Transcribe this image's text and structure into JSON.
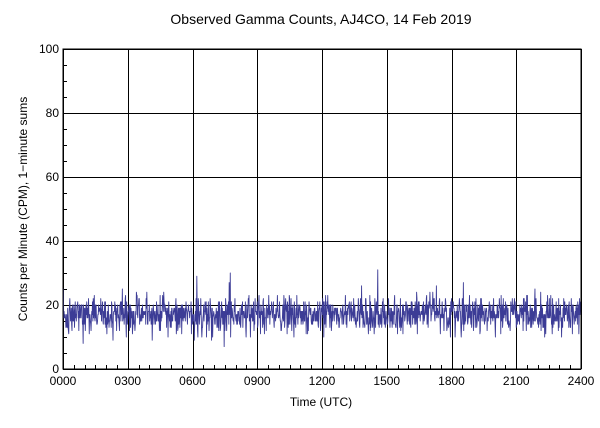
{
  "chart_data": {
    "type": "line",
    "title": "Observed Gamma Counts, AJ4CO, 14 Feb 2019",
    "xlabel": "Time (UTC)",
    "ylabel": "Counts per Minute (CPM), 1−minute sums",
    "x_tick_labels": [
      "0000",
      "0300",
      "0600",
      "0900",
      "1200",
      "1500",
      "1800",
      "2100",
      "2400"
    ],
    "y_tick_labels": [
      "0",
      "20",
      "40",
      "60",
      "80",
      "100"
    ],
    "xlim_minutes": [
      0,
      1440
    ],
    "ylim": [
      0,
      100
    ],
    "y_ticks": [
      0,
      20,
      40,
      60,
      80,
      100
    ],
    "x_ticks_minutes": [
      0,
      180,
      360,
      540,
      720,
      900,
      1080,
      1260,
      1440
    ],
    "grid": true,
    "series": [
      {
        "color": "#3c3c96",
        "sample_interval_minutes": 1,
        "mean_cpm": 17,
        "typical_range_cpm": [
          8,
          30
        ],
        "peaks": [
          {
            "time": "0612",
            "cpm": 29
          },
          {
            "time": "0745",
            "cpm": 30
          },
          {
            "time": "1435",
            "cpm": 31
          }
        ]
      }
    ]
  }
}
